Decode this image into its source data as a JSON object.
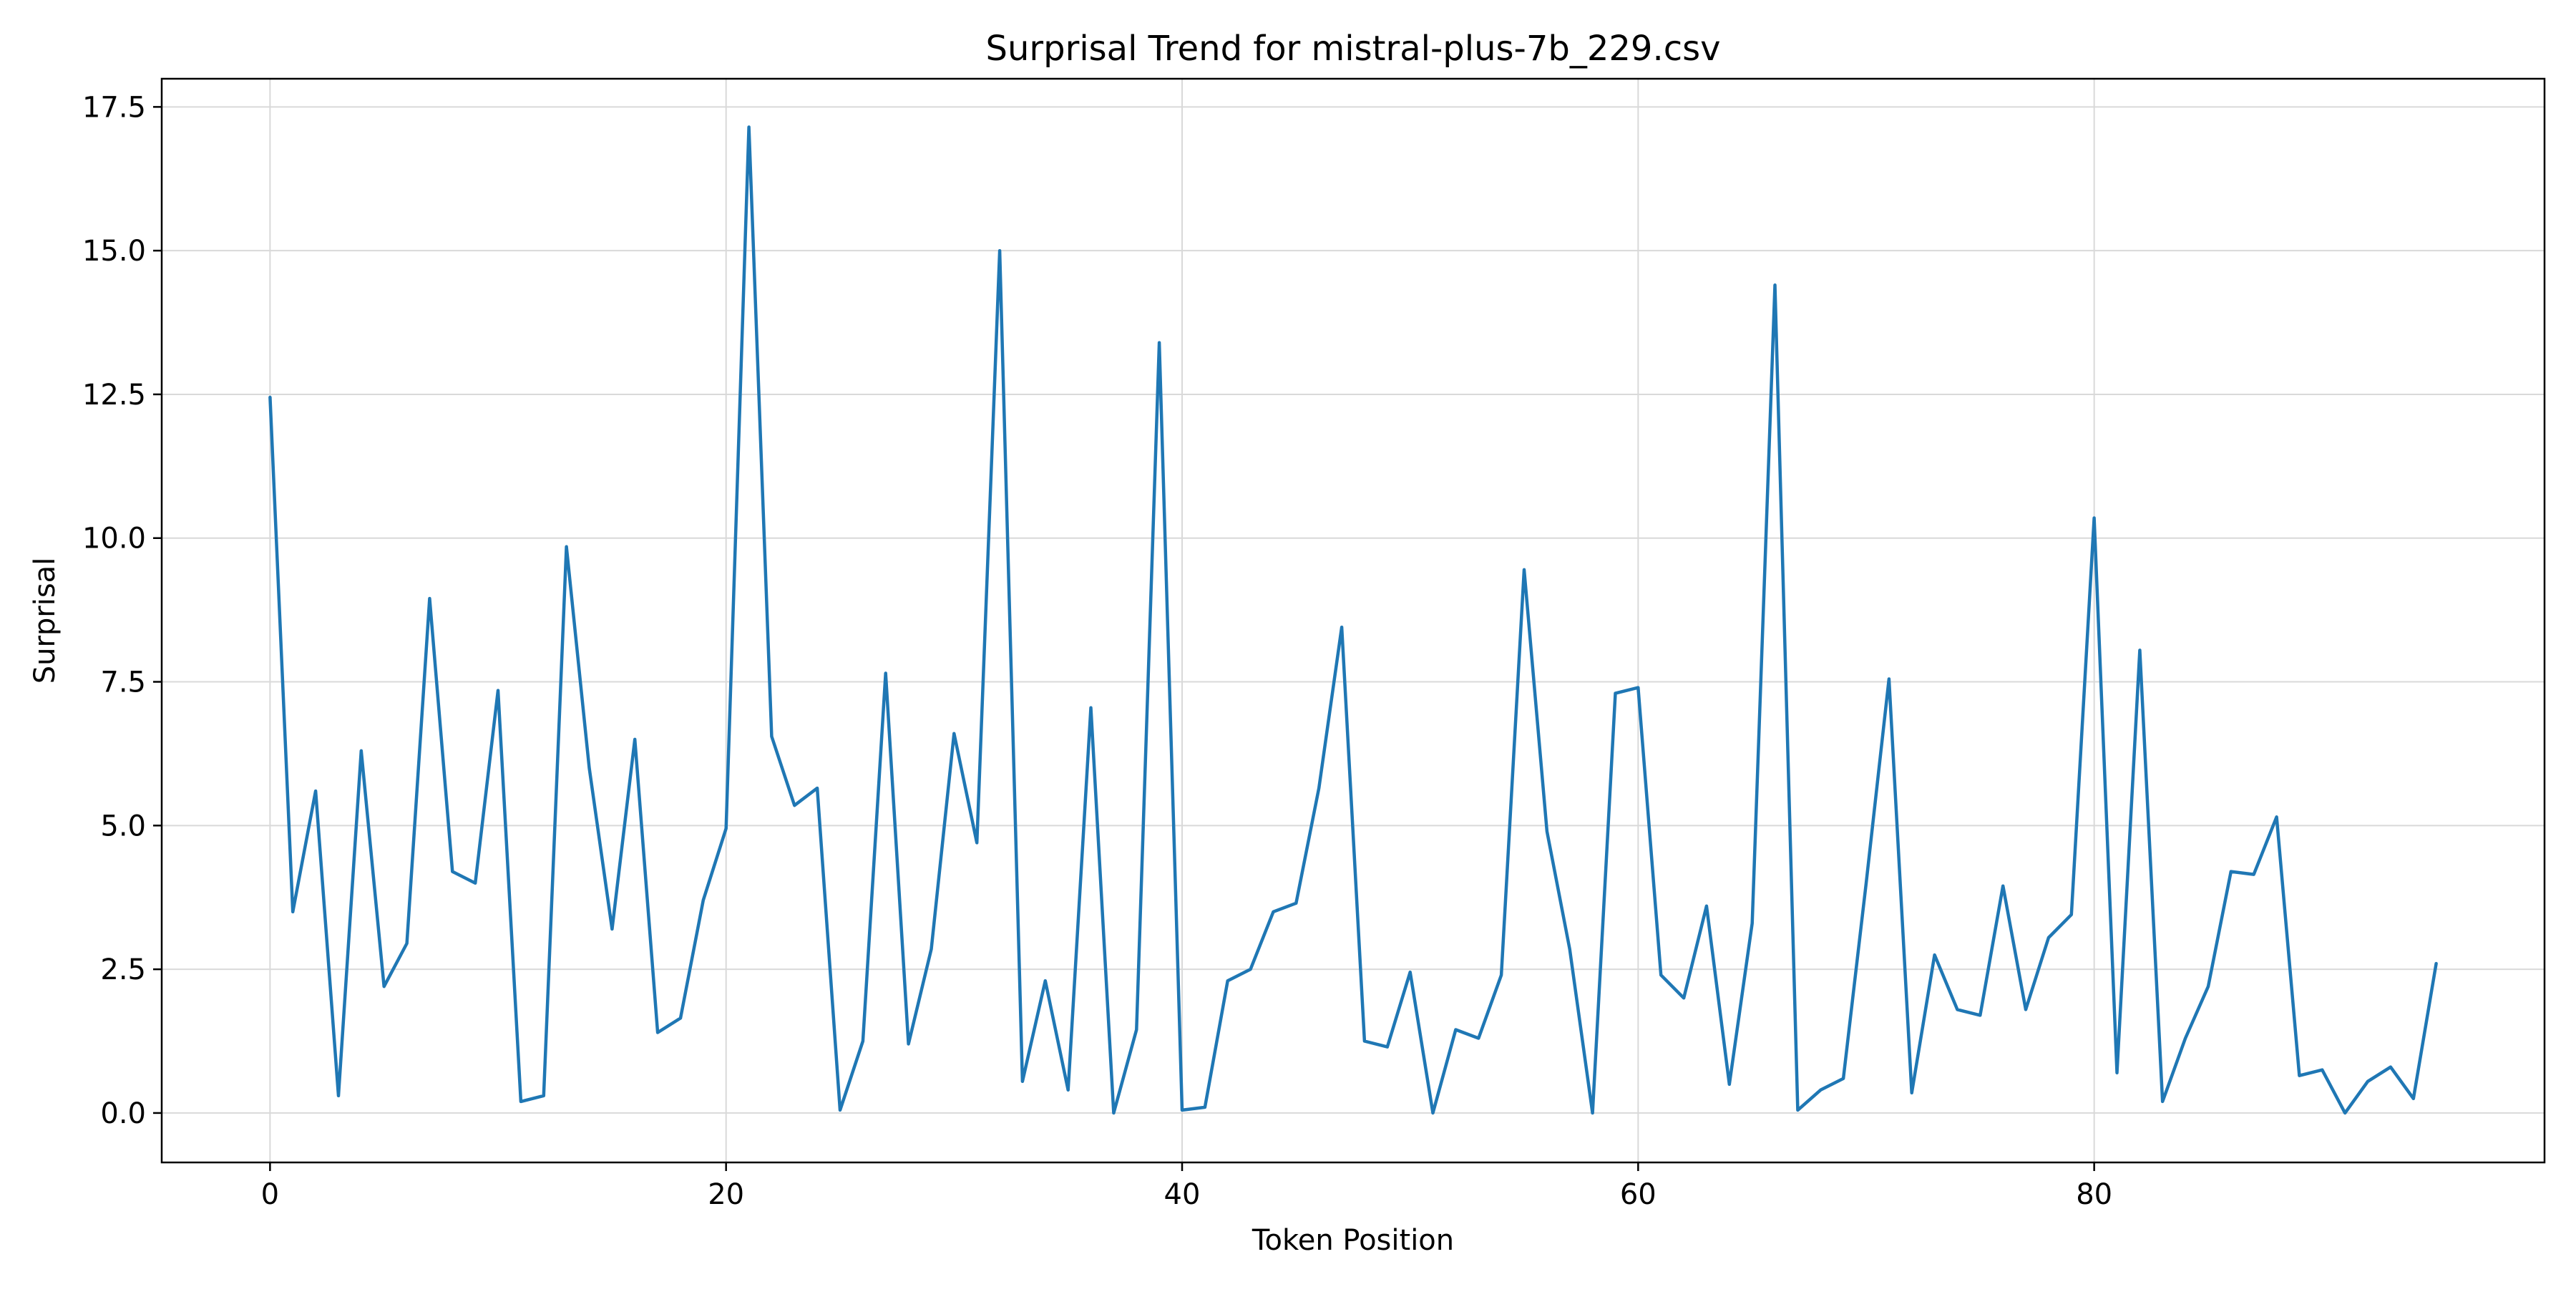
{
  "chart_data": {
    "type": "line",
    "title": "Surprisal Trend for mistral-plus-7b_229.csv",
    "xlabel": "Token Position",
    "ylabel": "Surprisal",
    "xlim": [
      -4.75,
      99.75
    ],
    "ylim": [
      -0.86,
      17.99
    ],
    "xticks": [
      0,
      20,
      40,
      60,
      80
    ],
    "xtick_labels": [
      "0",
      "20",
      "40",
      "60",
      "80"
    ],
    "yticks": [
      0.0,
      2.5,
      5.0,
      7.5,
      10.0,
      12.5,
      15.0,
      17.5
    ],
    "ytick_labels": [
      "0.0",
      "2.5",
      "5.0",
      "7.5",
      "10.0",
      "12.5",
      "15.0",
      "17.5"
    ],
    "grid": true,
    "series": [
      {
        "color": "#1f77b4",
        "x": [
          0,
          1,
          2,
          3,
          4,
          5,
          6,
          7,
          8,
          9,
          10,
          11,
          12,
          13,
          14,
          15,
          16,
          17,
          18,
          19,
          20,
          21,
          22,
          23,
          24,
          25,
          26,
          27,
          28,
          29,
          30,
          31,
          32,
          33,
          34,
          35,
          36,
          37,
          38,
          39,
          40,
          41,
          42,
          43,
          44,
          45,
          46,
          47,
          48,
          49,
          50,
          51,
          52,
          53,
          54,
          55,
          56,
          57,
          58,
          59,
          60,
          61,
          62,
          63,
          64,
          65,
          66,
          67,
          68,
          69,
          70,
          71,
          72,
          73,
          74,
          75,
          76,
          77,
          78,
          79,
          80,
          81,
          82,
          83,
          84,
          85,
          86,
          87,
          88,
          89,
          90,
          91,
          92,
          93,
          94,
          95
        ],
        "values": [
          12.45,
          3.5,
          5.6,
          0.3,
          6.3,
          2.2,
          2.95,
          8.95,
          4.2,
          4.0,
          7.35,
          0.2,
          0.3,
          9.85,
          6.0,
          3.2,
          6.5,
          1.4,
          1.65,
          3.7,
          4.95,
          17.15,
          6.55,
          5.35,
          5.65,
          0.05,
          1.25,
          7.65,
          1.2,
          2.85,
          6.6,
          4.7,
          15.0,
          0.55,
          2.3,
          0.4,
          7.05,
          0.0,
          1.45,
          13.4,
          0.05,
          0.1,
          2.3,
          2.5,
          3.5,
          3.65,
          5.65,
          8.45,
          1.25,
          1.15,
          2.45,
          0.0,
          1.45,
          1.3,
          2.4,
          9.45,
          4.9,
          2.85,
          0.0,
          7.3,
          7.4,
          2.4,
          2.0,
          3.6,
          0.5,
          3.3,
          14.4,
          0.05,
          0.4,
          0.6,
          4.0,
          7.55,
          0.35,
          2.75,
          1.8,
          1.7,
          3.95,
          1.8,
          3.05,
          3.45,
          10.35,
          0.7,
          8.05,
          0.2,
          1.3,
          2.2,
          4.2,
          4.15,
          5.15,
          0.65,
          0.75,
          0.0,
          0.55,
          0.8,
          0.25,
          2.6
        ]
      }
    ]
  }
}
